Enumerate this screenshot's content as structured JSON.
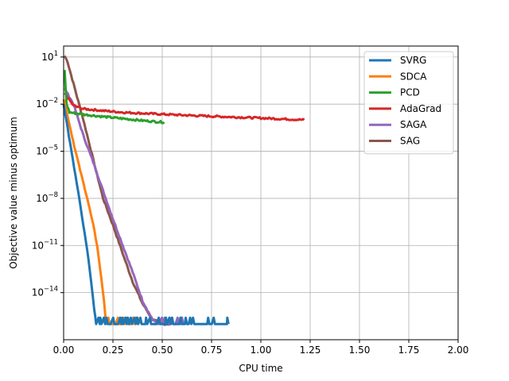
{
  "chart_data": {
    "type": "line",
    "title": "",
    "xlabel": "CPU time",
    "ylabel": "Objective value minus optimum",
    "xlim": [
      0,
      2
    ],
    "ylim": [
      1e-17,
      50
    ],
    "y_scale": "log",
    "x_ticks": [
      {
        "value": 0,
        "label": "0.00"
      },
      {
        "value": 0.25,
        "label": "0.25"
      },
      {
        "value": 0.5,
        "label": "0.50"
      },
      {
        "value": 0.75,
        "label": "0.75"
      },
      {
        "value": 1.0,
        "label": "1.00"
      },
      {
        "value": 1.25,
        "label": "1.25"
      },
      {
        "value": 1.5,
        "label": "1.50"
      },
      {
        "value": 1.75,
        "label": "1.75"
      },
      {
        "value": 2.0,
        "label": "2.00"
      }
    ],
    "y_ticks": [
      {
        "value": 10.0,
        "base": "10",
        "exp": "1"
      },
      {
        "value": 0.01,
        "base": "10",
        "exp": "−2"
      },
      {
        "value": 1e-05,
        "base": "10",
        "exp": "−5"
      },
      {
        "value": 1e-08,
        "base": "10",
        "exp": "−8"
      },
      {
        "value": 1e-11,
        "base": "10",
        "exp": "−11"
      },
      {
        "value": 1e-14,
        "base": "10",
        "exp": "−14"
      }
    ],
    "grid": true,
    "legend_position": "top-right",
    "series": [
      {
        "name": "SVRG",
        "color": "#1f77b4",
        "points": [
          [
            0.0,
            0.01
          ],
          [
            0.02,
            0.0003
          ],
          [
            0.04,
            1e-05
          ],
          [
            0.06,
            3e-07
          ],
          [
            0.08,
            1e-08
          ],
          [
            0.1,
            2e-10
          ],
          [
            0.12,
            5e-12
          ],
          [
            0.14,
            5e-14
          ],
          [
            0.155,
            1e-15
          ],
          [
            0.165,
            1e-16
          ]
        ],
        "noise_from": 0.165,
        "noise_to": 0.83,
        "noise_level": 1e-16,
        "noise_peak": 2.5e-16
      },
      {
        "name": "SDCA",
        "color": "#ff7f0e",
        "points": [
          [
            0.0,
            0.02
          ],
          [
            0.03,
            0.0005
          ],
          [
            0.06,
            1e-05
          ],
          [
            0.09,
            3e-07
          ],
          [
            0.12,
            1e-08
          ],
          [
            0.15,
            2e-10
          ],
          [
            0.17,
            1e-11
          ],
          [
            0.19,
            1e-13
          ],
          [
            0.205,
            3e-15
          ],
          [
            0.215,
            1e-16
          ]
        ],
        "noise_from": 0.215,
        "noise_to": 0.375,
        "noise_level": 1e-16,
        "noise_peak": 2.5e-16
      },
      {
        "name": "PCD",
        "color": "#2ca02c",
        "points": [
          [
            0.005,
            1.5
          ],
          [
            0.01,
            0.1
          ],
          [
            0.015,
            0.01
          ],
          [
            0.03,
            0.003
          ],
          [
            0.1,
            0.0022
          ],
          [
            0.2,
            0.0016
          ],
          [
            0.3,
            0.0012
          ],
          [
            0.4,
            0.0009
          ],
          [
            0.51,
            0.0007
          ]
        ]
      },
      {
        "name": "AdaGrad",
        "color": "#d62728",
        "points": [
          [
            0.005,
            0.05
          ],
          [
            0.05,
            0.008
          ],
          [
            0.1,
            0.005
          ],
          [
            0.2,
            0.0038
          ],
          [
            0.3,
            0.003
          ],
          [
            0.4,
            0.0026
          ],
          [
            0.6,
            0.002
          ],
          [
            0.8,
            0.0016
          ],
          [
            1.0,
            0.0013
          ],
          [
            1.22,
            0.001
          ]
        ]
      },
      {
        "name": "SAGA",
        "color": "#9467bd",
        "points": [
          [
            0.005,
            0.1
          ],
          [
            0.05,
            0.01
          ],
          [
            0.1,
            0.0001
          ],
          [
            0.15,
            2e-06
          ],
          [
            0.2,
            3e-08
          ],
          [
            0.25,
            5e-10
          ],
          [
            0.3,
            1e-11
          ],
          [
            0.35,
            2e-13
          ],
          [
            0.4,
            3e-15
          ],
          [
            0.45,
            2e-16
          ],
          [
            0.48,
            1e-16
          ]
        ],
        "noise_from": 0.48,
        "noise_to": 0.6,
        "noise_level": 1e-16,
        "noise_peak": 2.5e-16
      },
      {
        "name": "SAG",
        "color": "#8c564b",
        "points": [
          [
            0.005,
            12
          ],
          [
            0.02,
            5
          ],
          [
            0.05,
            0.2
          ],
          [
            0.1,
            0.001
          ],
          [
            0.15,
            3e-06
          ],
          [
            0.2,
            1e-08
          ],
          [
            0.25,
            2e-10
          ],
          [
            0.3,
            3e-12
          ],
          [
            0.35,
            5e-14
          ],
          [
            0.4,
            2e-15
          ],
          [
            0.45,
            2e-16
          ],
          [
            0.5,
            1e-16
          ],
          [
            0.55,
            1e-16
          ]
        ]
      }
    ]
  }
}
